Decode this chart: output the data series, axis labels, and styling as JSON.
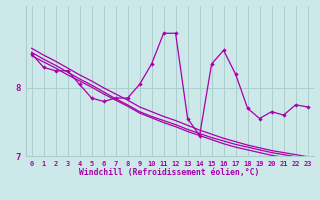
{
  "xlabel": "Windchill (Refroidissement éolien,°C)",
  "background_color": "#cce8e8",
  "grid_color": "#aacece",
  "line_color": "#aa00aa",
  "x_values": [
    0,
    1,
    2,
    3,
    4,
    5,
    6,
    7,
    8,
    9,
    10,
    11,
    12,
    13,
    14,
    15,
    16,
    17,
    18,
    19,
    20,
    21,
    22,
    23
  ],
  "y_main": [
    8.5,
    8.3,
    8.25,
    8.25,
    8.05,
    7.85,
    7.8,
    7.85,
    7.85,
    8.05,
    8.35,
    8.8,
    8.8,
    7.55,
    7.3,
    8.35,
    8.55,
    8.2,
    7.7,
    7.55,
    7.65,
    7.6,
    7.75,
    7.72
  ],
  "y_trend1": [
    8.52,
    8.42,
    8.33,
    8.23,
    8.13,
    8.04,
    7.94,
    7.84,
    7.75,
    7.65,
    7.58,
    7.52,
    7.46,
    7.39,
    7.33,
    7.27,
    7.22,
    7.17,
    7.13,
    7.09,
    7.05,
    7.02,
    6.99,
    6.96
  ],
  "y_trend2": [
    8.58,
    8.48,
    8.39,
    8.29,
    8.19,
    8.1,
    8.0,
    7.91,
    7.82,
    7.72,
    7.65,
    7.58,
    7.52,
    7.45,
    7.38,
    7.32,
    7.26,
    7.21,
    7.16,
    7.12,
    7.08,
    7.05,
    7.02,
    6.99
  ],
  "y_trend3": [
    8.47,
    8.38,
    8.29,
    8.19,
    8.1,
    8.01,
    7.91,
    7.82,
    7.73,
    7.63,
    7.56,
    7.49,
    7.43,
    7.36,
    7.3,
    7.24,
    7.18,
    7.13,
    7.09,
    7.05,
    7.01,
    6.98,
    6.95,
    6.92
  ],
  "xlim": [
    -0.5,
    23.5
  ],
  "ylim": [
    7.0,
    9.2
  ],
  "yticks": [
    7,
    8
  ],
  "xticks": [
    0,
    1,
    2,
    3,
    4,
    5,
    6,
    7,
    8,
    9,
    10,
    11,
    12,
    13,
    14,
    15,
    16,
    17,
    18,
    19,
    20,
    21,
    22,
    23
  ]
}
